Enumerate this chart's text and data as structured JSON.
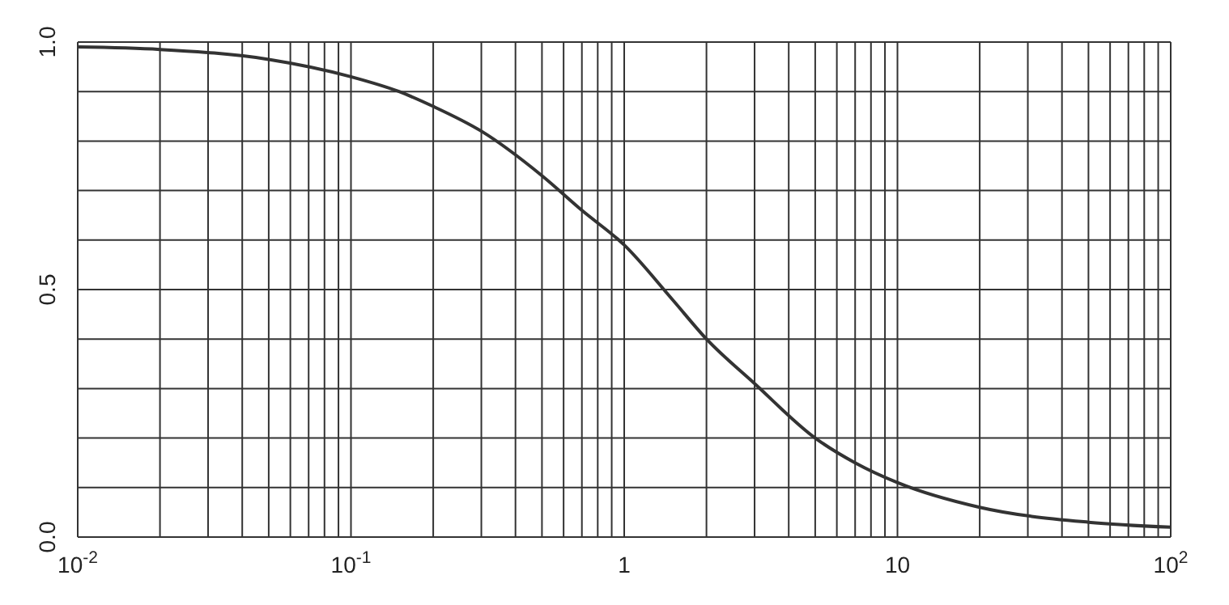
{
  "chart_data": {
    "type": "line",
    "log": "x",
    "grid": true,
    "marker": "none",
    "line_style": "solid",
    "x": [
      0.01,
      0.02,
      0.05,
      0.1,
      0.15,
      0.2,
      0.3,
      0.5,
      0.7,
      1,
      1.5,
      2,
      3,
      5,
      7,
      10,
      20,
      50,
      100
    ],
    "series": [
      {
        "color": "#333333",
        "values": [
          0.99,
          0.985,
          0.965,
          0.93,
          0.9,
          0.87,
          0.82,
          0.73,
          0.66,
          0.59,
          0.48,
          0.4,
          0.31,
          0.2,
          0.15,
          0.11,
          0.06,
          0.03,
          0.02
        ]
      }
    ],
    "xlim": [
      0.01,
      100
    ],
    "xticks": [
      {
        "value": 0.01,
        "label": "10$^{-2}$"
      },
      {
        "value": 0.02,
        "label": null
      },
      {
        "value": 0.03,
        "label": null
      },
      {
        "value": 0.04,
        "label": null
      },
      {
        "value": 0.05,
        "label": null
      },
      {
        "value": 0.06,
        "label": null
      },
      {
        "value": 0.07,
        "label": null
      },
      {
        "value": 0.08,
        "label": null
      },
      {
        "value": 0.09,
        "label": null
      },
      {
        "value": 0.1,
        "label": "10$^{-1}$"
      },
      {
        "value": 0.2,
        "label": null
      },
      {
        "value": 0.3,
        "label": null
      },
      {
        "value": 0.4,
        "label": null
      },
      {
        "value": 0.5,
        "label": null
      },
      {
        "value": 0.6,
        "label": null
      },
      {
        "value": 0.7,
        "label": null
      },
      {
        "value": 0.8,
        "label": null
      },
      {
        "value": 0.9,
        "label": null
      },
      {
        "value": 1,
        "label": "1"
      },
      {
        "value": 2,
        "label": null
      },
      {
        "value": 3,
        "label": null
      },
      {
        "value": 4,
        "label": null
      },
      {
        "value": 5,
        "label": null
      },
      {
        "value": 6,
        "label": null
      },
      {
        "value": 7,
        "label": null
      },
      {
        "value": 8,
        "label": null
      },
      {
        "value": 9,
        "label": null
      },
      {
        "value": 10,
        "label": "10"
      },
      {
        "value": 20,
        "label": null
      },
      {
        "value": 30,
        "label": null
      },
      {
        "value": 40,
        "label": null
      },
      {
        "value": 50,
        "label": null
      },
      {
        "value": 60,
        "label": null
      },
      {
        "value": 70,
        "label": null
      },
      {
        "value": 80,
        "label": null
      },
      {
        "value": 90,
        "label": null
      },
      {
        "value": 100,
        "label": "10$^{2}$"
      }
    ],
    "ylim": [
      0,
      1
    ],
    "yticks": [
      {
        "value": 0,
        "label": "0.0"
      },
      {
        "value": 0.1,
        "label": null
      },
      {
        "value": 0.2,
        "label": null
      },
      {
        "value": 0.3,
        "label": null
      },
      {
        "value": 0.4,
        "label": null
      },
      {
        "value": 0.5,
        "label": "0.5"
      },
      {
        "value": 0.6,
        "label": null
      },
      {
        "value": 0.7,
        "label": null
      },
      {
        "value": 0.8,
        "label": null
      },
      {
        "value": 0.9,
        "label": null
      },
      {
        "value": 1,
        "label": "1.0"
      }
    ]
  }
}
